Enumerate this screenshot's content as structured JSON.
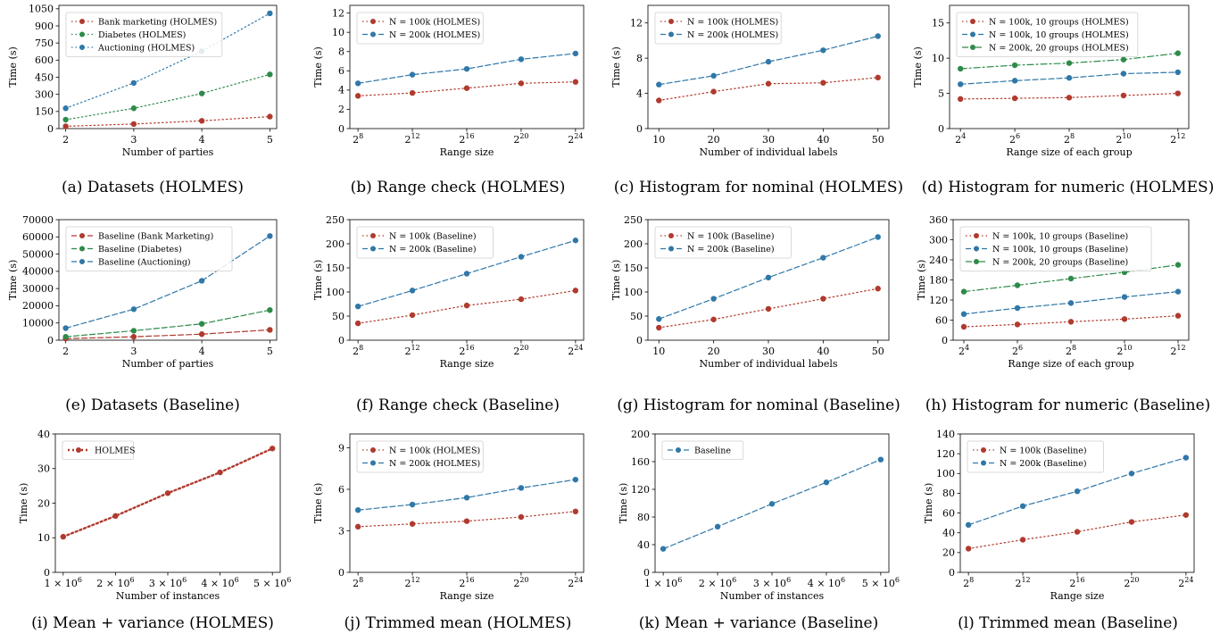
{
  "colors": {
    "red": "#b03a2e",
    "green": "#2e8b4a",
    "blue": "#2f78a8"
  },
  "chart_data": [
    {
      "id": "a",
      "caption": "(a) Datasets (HOLMES)",
      "type": "line",
      "xlabel": "Number of parties",
      "ylabel": "Time (s)",
      "xscale": "linear",
      "xlim": [
        1.9,
        5.1
      ],
      "ylim": [
        0,
        1080
      ],
      "xticks": [
        2,
        3,
        4,
        5
      ],
      "xticklabels": [
        "2",
        "3",
        "4",
        "5"
      ],
      "yticks": [
        0,
        150,
        300,
        450,
        600,
        750,
        900,
        1050
      ],
      "yticklabels": [
        "0",
        "150",
        "300",
        "450",
        "600",
        "750",
        "900",
        "1050"
      ],
      "legend": "top-left",
      "series": [
        {
          "name": "Bank marketing (HOLMES)",
          "color": "red",
          "dash": "dot",
          "x": [
            2,
            3,
            4,
            5
          ],
          "values": [
            20,
            40,
            68,
            105
          ]
        },
        {
          "name": "Diabetes (HOLMES)",
          "color": "green",
          "dash": "dot",
          "x": [
            2,
            3,
            4,
            5
          ],
          "values": [
            78,
            178,
            308,
            475
          ]
        },
        {
          "name": "Auctioning (HOLMES)",
          "color": "blue",
          "dash": "dot",
          "x": [
            2,
            3,
            4,
            5
          ],
          "values": [
            178,
            400,
            678,
            1010
          ]
        }
      ]
    },
    {
      "id": "b",
      "caption": "(b) Range check (HOLMES)",
      "type": "line",
      "xlabel": "Range size",
      "ylabel": "Time (s)",
      "xscale": "log2",
      "xlim": [
        7.4,
        24.6
      ],
      "ylim": [
        0,
        12.8
      ],
      "xticks": [
        8,
        12,
        16,
        20,
        24
      ],
      "xticklabels": [
        "2^8",
        "2^12",
        "2^16",
        "2^20",
        "2^24"
      ],
      "yticks": [
        0,
        2,
        4,
        6,
        8,
        10,
        12
      ],
      "yticklabels": [
        "0",
        "2",
        "4",
        "6",
        "8",
        "10",
        "12"
      ],
      "legend": "top-left",
      "series": [
        {
          "name": "N = 100k (HOLMES)",
          "color": "red",
          "dash": "dot",
          "x": [
            8,
            12,
            16,
            20,
            24
          ],
          "values": [
            3.4,
            3.7,
            4.2,
            4.7,
            4.85
          ]
        },
        {
          "name": "N = 200k (HOLMES)",
          "color": "blue",
          "dash": "dash",
          "x": [
            8,
            12,
            16,
            20,
            24
          ],
          "values": [
            4.7,
            5.6,
            6.2,
            7.2,
            7.8
          ]
        }
      ]
    },
    {
      "id": "c",
      "caption": "(c) Histogram for nominal (HOLMES)",
      "type": "line",
      "xlabel": "Number of individual labels",
      "ylabel": "Time (s)",
      "xscale": "linear",
      "xlim": [
        8,
        52
      ],
      "ylim": [
        0,
        14
      ],
      "xticks": [
        10,
        20,
        30,
        40,
        50
      ],
      "xticklabels": [
        "10",
        "20",
        "30",
        "40",
        "50"
      ],
      "yticks": [
        0,
        4,
        8,
        12
      ],
      "yticklabels": [
        "0",
        "4",
        "8",
        "12"
      ],
      "legend": "top-left",
      "series": [
        {
          "name": "N = 100k (HOLMES)",
          "color": "red",
          "dash": "dot",
          "x": [
            10,
            20,
            30,
            40,
            50
          ],
          "values": [
            3.2,
            4.2,
            5.1,
            5.2,
            5.8
          ]
        },
        {
          "name": "N = 200k (HOLMES)",
          "color": "blue",
          "dash": "dash",
          "x": [
            10,
            20,
            30,
            40,
            50
          ],
          "values": [
            5.0,
            6.0,
            7.6,
            8.9,
            10.5
          ]
        }
      ]
    },
    {
      "id": "d",
      "caption": "(d) Histogram for numeric (HOLMES)",
      "type": "line",
      "xlabel": "Range size of each group",
      "ylabel": "Time (s)",
      "xscale": "log2",
      "xlim": [
        3.6,
        12.4
      ],
      "ylim": [
        0,
        17.5
      ],
      "xticks": [
        4,
        6,
        8,
        10,
        12
      ],
      "xticklabels": [
        "2^4",
        "2^6",
        "2^8",
        "2^10",
        "2^12"
      ],
      "yticks": [
        0,
        5,
        10,
        15
      ],
      "yticklabels": [
        "0",
        "5",
        "10",
        "15"
      ],
      "legend": "top-left",
      "series": [
        {
          "name": "N = 100k, 10 groups (HOLMES)",
          "color": "red",
          "dash": "dot",
          "x": [
            4,
            6,
            8,
            10,
            12
          ],
          "values": [
            4.2,
            4.3,
            4.4,
            4.7,
            5.0
          ]
        },
        {
          "name": "N = 100k, 10 groups (HOLMES)",
          "color": "blue",
          "dash": "dash",
          "x": [
            4,
            6,
            8,
            10,
            12
          ],
          "values": [
            6.3,
            6.8,
            7.2,
            7.8,
            8.0
          ]
        },
        {
          "name": "N = 200k, 20 groups (HOLMES)",
          "color": "green",
          "dash": "dashdot",
          "x": [
            4,
            6,
            8,
            10,
            12
          ],
          "values": [
            8.5,
            9.0,
            9.3,
            9.8,
            10.7
          ]
        }
      ]
    },
    {
      "id": "e",
      "caption": "(e) Datasets (Baseline)",
      "type": "line",
      "xlabel": "Number of parties",
      "ylabel": "Time (s)",
      "xscale": "linear",
      "xlim": [
        1.9,
        5.1
      ],
      "ylim": [
        0,
        70000
      ],
      "xticks": [
        2,
        3,
        4,
        5
      ],
      "xticklabels": [
        "2",
        "3",
        "4",
        "5"
      ],
      "yticks": [
        0,
        10000,
        20000,
        30000,
        40000,
        50000,
        60000,
        70000
      ],
      "yticklabels": [
        "0",
        "10000",
        "20000",
        "30000",
        "40000",
        "50000",
        "60000",
        "70000"
      ],
      "legend": "top-left",
      "series": [
        {
          "name": "Baseline (Bank Marketing)",
          "color": "red",
          "dash": "dash",
          "x": [
            2,
            3,
            4,
            5
          ],
          "values": [
            900,
            2000,
            3500,
            6000
          ]
        },
        {
          "name": "Baseline (Diabetes)",
          "color": "green",
          "dash": "dash",
          "x": [
            2,
            3,
            4,
            5
          ],
          "values": [
            2000,
            5500,
            9500,
            17500
          ]
        },
        {
          "name": "Baseline (Auctioning)",
          "color": "blue",
          "dash": "dash",
          "x": [
            2,
            3,
            4,
            5
          ],
          "values": [
            7000,
            18000,
            34500,
            60500
          ]
        }
      ]
    },
    {
      "id": "f",
      "caption": "(f) Range check (Baseline)",
      "type": "line",
      "xlabel": "Range size",
      "ylabel": "Time (s)",
      "xscale": "log2",
      "xlim": [
        7.4,
        24.6
      ],
      "ylim": [
        0,
        250
      ],
      "xticks": [
        8,
        12,
        16,
        20,
        24
      ],
      "xticklabels": [
        "2^8",
        "2^12",
        "2^16",
        "2^20",
        "2^24"
      ],
      "yticks": [
        0,
        50,
        100,
        150,
        200,
        250
      ],
      "yticklabels": [
        "0",
        "50",
        "100",
        "150",
        "200",
        "250"
      ],
      "legend": "top-left",
      "series": [
        {
          "name": "N = 100k (Baseline)",
          "color": "red",
          "dash": "dot",
          "x": [
            8,
            12,
            16,
            20,
            24
          ],
          "values": [
            35,
            52,
            72,
            85,
            103
          ]
        },
        {
          "name": "N = 200k (Baseline)",
          "color": "blue",
          "dash": "dash",
          "x": [
            8,
            12,
            16,
            20,
            24
          ],
          "values": [
            70,
            103,
            138,
            173,
            207
          ]
        }
      ]
    },
    {
      "id": "g",
      "caption": "(g) Histogram for nominal (Baseline)",
      "type": "line",
      "xlabel": "Number of individual labels",
      "ylabel": "Time (s)",
      "xscale": "linear",
      "xlim": [
        8,
        52
      ],
      "ylim": [
        0,
        250
      ],
      "xticks": [
        10,
        20,
        30,
        40,
        50
      ],
      "xticklabels": [
        "10",
        "20",
        "30",
        "40",
        "50"
      ],
      "yticks": [
        0,
        50,
        100,
        150,
        200,
        250
      ],
      "yticklabels": [
        "0",
        "50",
        "100",
        "150",
        "200",
        "250"
      ],
      "legend": "top-left",
      "series": [
        {
          "name": "N = 100k (Baseline)",
          "color": "red",
          "dash": "dot",
          "x": [
            10,
            20,
            30,
            40,
            50
          ],
          "values": [
            26,
            43,
            65,
            86,
            107
          ]
        },
        {
          "name": "N = 200k (Baseline)",
          "color": "blue",
          "dash": "dash",
          "x": [
            10,
            20,
            30,
            40,
            50
          ],
          "values": [
            44,
            86,
            130,
            171,
            214
          ]
        }
      ]
    },
    {
      "id": "h",
      "caption": "(h) Histogram for numeric (Baseline)",
      "type": "line",
      "xlabel": "Range size of each group",
      "ylabel": "Time (s)",
      "xscale": "log2",
      "xlim": [
        3.6,
        12.4
      ],
      "ylim": [
        0,
        360
      ],
      "xticks": [
        4,
        6,
        8,
        10,
        12
      ],
      "xticklabels": [
        "2^4",
        "2^6",
        "2^8",
        "2^10",
        "2^12"
      ],
      "yticks": [
        0,
        60,
        120,
        180,
        240,
        300,
        360
      ],
      "yticklabels": [
        "0",
        "60",
        "120",
        "180",
        "240",
        "300",
        "360"
      ],
      "legend": "top-left",
      "series": [
        {
          "name": "N = 100k, 10 groups (Baseline)",
          "color": "red",
          "dash": "dot",
          "x": [
            4,
            6,
            8,
            10,
            12
          ],
          "values": [
            40,
            47,
            55,
            63,
            73
          ]
        },
        {
          "name": "N = 100k, 10 groups (Baseline)",
          "color": "blue",
          "dash": "dash",
          "x": [
            4,
            6,
            8,
            10,
            12
          ],
          "values": [
            78,
            96,
            111,
            129,
            145
          ]
        },
        {
          "name": "N = 200k, 20 groups (Baseline)",
          "color": "green",
          "dash": "dashdot",
          "x": [
            4,
            6,
            8,
            10,
            12
          ],
          "values": [
            145,
            164,
            184,
            203,
            225
          ]
        }
      ]
    },
    {
      "id": "i",
      "caption": "(i) Mean + variance (HOLMES)",
      "type": "line",
      "xlabel": "Number of instances",
      "ylabel": "Time (s)",
      "xscale": "linear",
      "xlim": [
        0.85,
        5.15
      ],
      "ylim": [
        0,
        40
      ],
      "xticks": [
        1,
        2,
        3,
        4,
        5
      ],
      "xticklabels": [
        "1 × 10^6",
        "2 × 10^6",
        "3 × 10^6",
        "4 × 10^6",
        "5 × 10^6"
      ],
      "yticks": [
        0,
        10,
        20,
        30,
        40
      ],
      "yticklabels": [
        "0",
        "10",
        "20",
        "30",
        "40"
      ],
      "legend": "top-left",
      "series": [
        {
          "name": "HOLMES",
          "color": "red",
          "dash": "dotthick",
          "x": [
            1,
            2,
            3,
            4,
            5
          ],
          "values": [
            10.3,
            16.3,
            22.9,
            28.9,
            35.8
          ]
        }
      ]
    },
    {
      "id": "j",
      "caption": "(j) Trimmed mean (HOLMES)",
      "type": "line",
      "xlabel": "Range size",
      "ylabel": "Time (s)",
      "xscale": "log2",
      "xlim": [
        7.4,
        24.6
      ],
      "ylim": [
        0,
        10
      ],
      "xticks": [
        8,
        12,
        16,
        20,
        24
      ],
      "xticklabels": [
        "2^8",
        "2^12",
        "2^16",
        "2^20",
        "2^24"
      ],
      "yticks": [
        0,
        3,
        6,
        9
      ],
      "yticklabels": [
        "0",
        "3",
        "6",
        "9"
      ],
      "legend": "top-left",
      "series": [
        {
          "name": "N = 100k (HOLMES)",
          "color": "red",
          "dash": "dot",
          "x": [
            8,
            12,
            16,
            20,
            24
          ],
          "values": [
            3.3,
            3.5,
            3.7,
            4.0,
            4.4
          ]
        },
        {
          "name": "N = 200k (HOLMES)",
          "color": "blue",
          "dash": "dash",
          "x": [
            8,
            12,
            16,
            20,
            24
          ],
          "values": [
            4.5,
            4.9,
            5.4,
            6.1,
            6.7
          ]
        }
      ]
    },
    {
      "id": "k",
      "caption": "(k) Mean + variance (Baseline)",
      "type": "line",
      "xlabel": "Number of instances",
      "ylabel": "Time (s)",
      "xscale": "linear",
      "xlim": [
        0.85,
        5.15
      ],
      "ylim": [
        0,
        200
      ],
      "xticks": [
        1,
        2,
        3,
        4,
        5
      ],
      "xticklabels": [
        "1 × 10^6",
        "2 × 10^6",
        "3 × 10^6",
        "4 × 10^6",
        "5 × 10^6"
      ],
      "yticks": [
        0,
        40,
        80,
        120,
        160,
        200
      ],
      "yticklabels": [
        "0",
        "40",
        "80",
        "120",
        "160",
        "200"
      ],
      "legend": "top-left",
      "series": [
        {
          "name": "Baseline",
          "color": "blue",
          "dash": "dash",
          "x": [
            1,
            2,
            3,
            4,
            5
          ],
          "values": [
            34,
            66,
            99,
            130,
            163
          ]
        }
      ]
    },
    {
      "id": "l",
      "caption": "(l) Trimmed mean (Baseline)",
      "type": "line",
      "xlabel": "Range size",
      "ylabel": "Time (s)",
      "xscale": "log2",
      "xlim": [
        7.4,
        24.6
      ],
      "ylim": [
        0,
        140
      ],
      "xticks": [
        8,
        12,
        16,
        20,
        24
      ],
      "xticklabels": [
        "2^8",
        "2^12",
        "2^16",
        "2^20",
        "2^24"
      ],
      "yticks": [
        0,
        20,
        40,
        60,
        80,
        100,
        120,
        140
      ],
      "yticklabels": [
        "0",
        "20",
        "40",
        "60",
        "80",
        "100",
        "120",
        "140"
      ],
      "legend": "top-left",
      "series": [
        {
          "name": "N = 100k (Baseline)",
          "color": "red",
          "dash": "dot",
          "x": [
            8,
            12,
            16,
            20,
            24
          ],
          "values": [
            24,
            33,
            41,
            51,
            58
          ]
        },
        {
          "name": "N = 200k (Baseline)",
          "color": "blue",
          "dash": "dash",
          "x": [
            8,
            12,
            16,
            20,
            24
          ],
          "values": [
            48,
            67,
            82,
            100,
            116
          ]
        }
      ]
    }
  ]
}
